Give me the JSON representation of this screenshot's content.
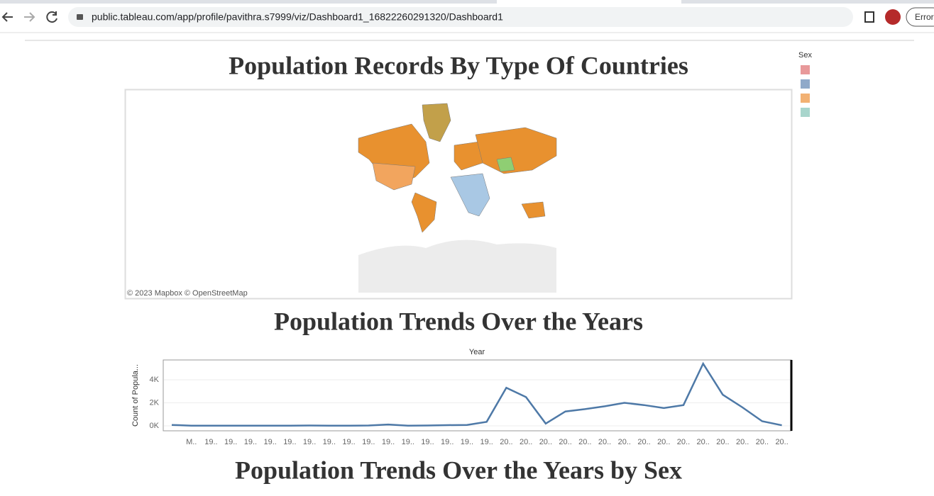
{
  "browser": {
    "url": "public.tableau.com/app/profile/pavithra.s7999/viz/Dashboard1_16822260291320/Dashboard1",
    "profile_button": "Error"
  },
  "dashboard": {
    "map_title": "Population Records By Type Of Countries",
    "map_attribution": "© 2023 Mapbox  © OpenStreetMap",
    "legend_title": "Sex",
    "legend_colors": [
      "#e8999a",
      "#8fa9c9",
      "#f2b173",
      "#a8d5cc"
    ],
    "trend_title": "Population Trends Over the Years",
    "sex_title": "Population Trends Over the Years by Sex"
  },
  "chart_data": {
    "type": "line",
    "x_label": "Year",
    "y_label": "Count of Popula...",
    "color": "#4e79a7",
    "categories": [
      null,
      "M..",
      "19..",
      "19..",
      "19..",
      "19..",
      "19..",
      "19..",
      "19..",
      "19..",
      "19..",
      "19..",
      "19..",
      "19..",
      "19..",
      "19..",
      "19..",
      "20..",
      "20..",
      "20..",
      "20..",
      "20..",
      "20..",
      "20..",
      "20..",
      "20..",
      "20..",
      "20..",
      "20..",
      "20..",
      "20..",
      "20.."
    ],
    "values": [
      80,
      20,
      10,
      10,
      10,
      10,
      10,
      30,
      10,
      10,
      30,
      120,
      20,
      30,
      60,
      80,
      350,
      3300,
      2500,
      200,
      1250,
      1450,
      1700,
      2000,
      1800,
      1550,
      1800,
      5400,
      2700,
      1600,
      400,
      50
    ],
    "ylim": [
      -430,
      5720
    ],
    "yticks": [
      {
        "value": 0,
        "label": "0K"
      },
      {
        "value": 2000,
        "label": "2K"
      },
      {
        "value": 4000,
        "label": "4K"
      }
    ],
    "grid": true
  }
}
